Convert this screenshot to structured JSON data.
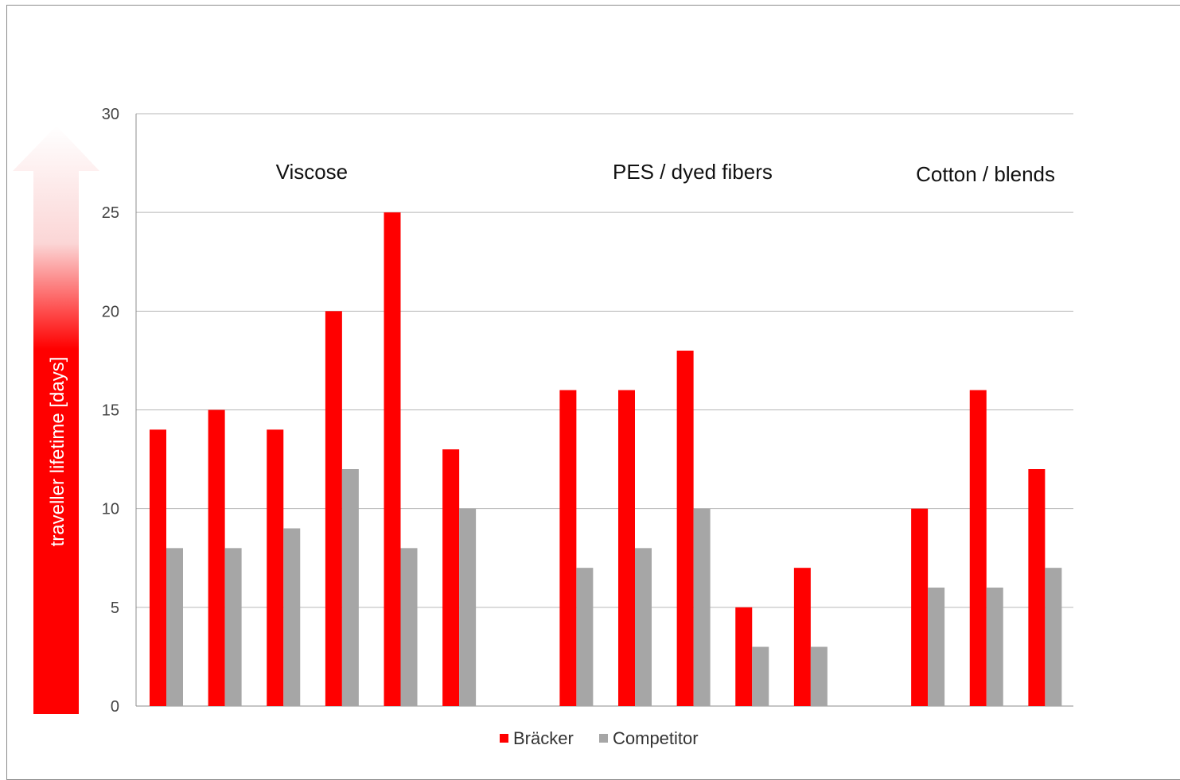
{
  "chart_data": {
    "type": "bar",
    "ylabel": "traveller lifetime [days]",
    "ylim": [
      0,
      30
    ],
    "yticks": [
      0,
      5,
      10,
      15,
      20,
      25,
      30
    ],
    "grid": true,
    "legend_position": "bottom",
    "groups": [
      {
        "label": "Viscose",
        "count": 6
      },
      {
        "label": "PES / dyed fibers",
        "count": 5
      },
      {
        "label": "Cotton / blends",
        "count": 3
      }
    ],
    "series": [
      {
        "name": "Bräcker",
        "color": "#ff0000",
        "values": [
          14,
          15,
          14,
          20,
          25,
          13,
          null,
          16,
          16,
          18,
          5,
          7,
          null,
          10,
          16,
          12
        ]
      },
      {
        "name": "Competitor",
        "color": "#a6a6a6",
        "values": [
          8,
          8,
          9,
          12,
          8,
          10,
          null,
          7,
          8,
          10,
          3,
          3,
          null,
          6,
          6,
          7
        ]
      }
    ]
  }
}
